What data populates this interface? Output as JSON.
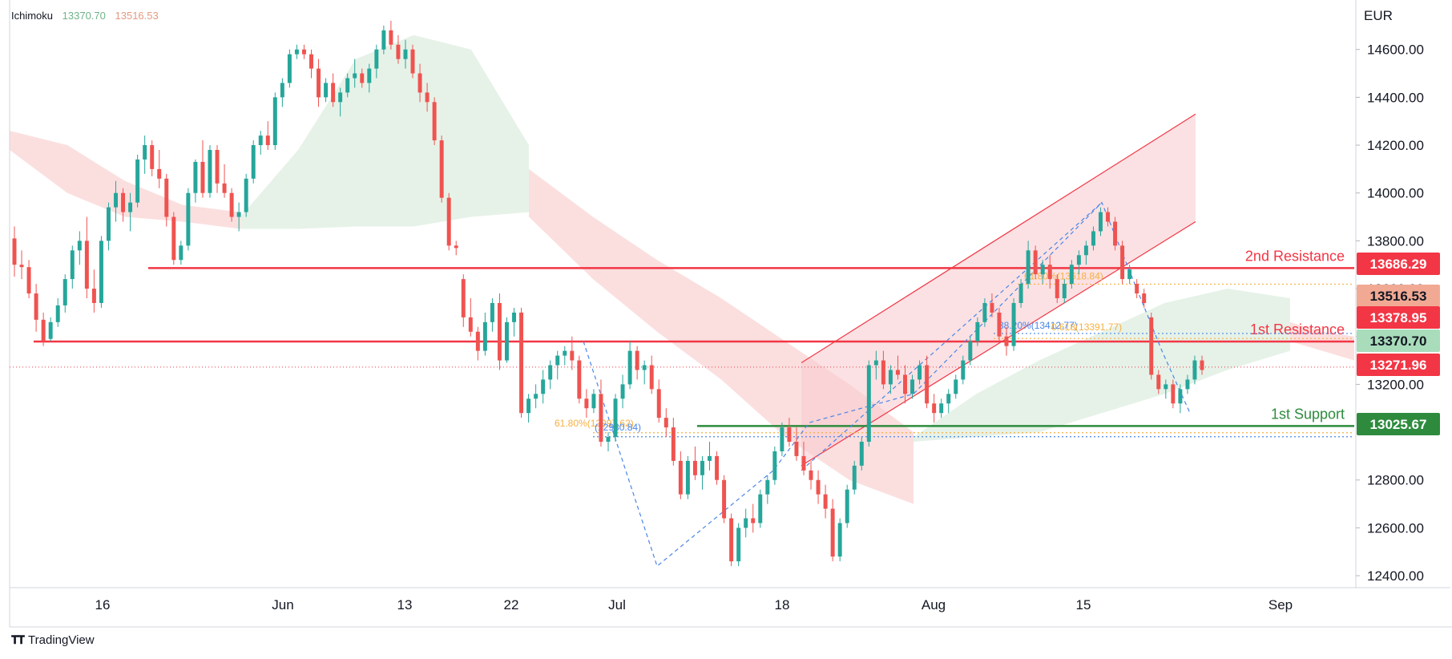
{
  "legend": {
    "name": "Ichimoku",
    "value1": "13370.70",
    "value2": "13516.53"
  },
  "currency": "EUR",
  "brand": "TradingView",
  "colors": {
    "up": "#26a69a",
    "down": "#ef5350",
    "resistance": "#f23645",
    "support": "#2e8b3e",
    "fib": "#f5b041",
    "zigzag": "#4a86e8",
    "cloudBull": "#e3f1e6",
    "cloudBear": "#fbdcdc",
    "channel": "#f23645"
  },
  "chart_data": {
    "type": "candlestick",
    "y_range": [
      12350,
      14780
    ],
    "y_ticks": [
      "14600.00",
      "14400.00",
      "14200.00",
      "14000.00",
      "13800.00",
      "13600.00",
      "13400.00",
      "13200.00",
      "12800.00",
      "12600.00",
      "12400.00"
    ],
    "x_labels": [
      "16",
      "Jun",
      "13",
      "22",
      "Jul",
      "18",
      "Aug",
      "15",
      "Sep"
    ],
    "price_labels": [
      {
        "text": "13686.29",
        "value": 13686.29,
        "color": "#f23645",
        "text_color": "#ffffff"
      },
      {
        "text": "13516.53",
        "value": 13516.53,
        "color": "#f2a994",
        "text_color": "#131722"
      },
      {
        "text": "13378.95",
        "value": 13378.95,
        "color": "#f23645",
        "text_color": "#ffffff"
      },
      {
        "text": "13370.70",
        "value": 13370.7,
        "color": "#a9dcbb",
        "text_color": "#131722"
      },
      {
        "text": "13271.96",
        "value": 13271.96,
        "color": "#f23645",
        "text_color": "#ffffff"
      },
      {
        "text": "13025.67",
        "value": 13025.67,
        "color": "#2e8b3e",
        "text_color": "#ffffff"
      }
    ],
    "levels": [
      {
        "name": "2nd Resistance",
        "value": 13686.29,
        "color": "#f23645"
      },
      {
        "name": "1st Resistance",
        "value": 13378.95,
        "color": "#f23645"
      },
      {
        "name": "1st Support",
        "value": 13025.67,
        "color": "#2e8b3e"
      }
    ],
    "fib_labels": [
      {
        "text": "61.80%(12997.62)",
        "value": 12997.62,
        "color": "#f5b041"
      },
      {
        "text": "(12980.84)",
        "value": 12980.84,
        "color": "#4a86e8"
      },
      {
        "text": "61.80%(13618.84)",
        "value": 13618.84,
        "color": "#f5b041"
      },
      {
        "text": "38.20%(13412.77)",
        "value": 13412.77,
        "color": "#4a86e8"
      },
      {
        "text": "0.618(13391.77)",
        "value": 13391.77,
        "color": "#f5b041"
      }
    ],
    "last_price": 13271.96,
    "candles": [
      [
        13810,
        13860,
        13650,
        13700
      ],
      [
        13700,
        13760,
        13640,
        13690
      ],
      [
        13690,
        13720,
        13560,
        13580
      ],
      [
        13580,
        13620,
        13420,
        13470
      ],
      [
        13470,
        13500,
        13360,
        13380
      ],
      [
        13390,
        13480,
        13380,
        13460
      ],
      [
        13460,
        13560,
        13440,
        13530
      ],
      [
        13530,
        13660,
        13500,
        13640
      ],
      [
        13640,
        13780,
        13600,
        13760
      ],
      [
        13760,
        13840,
        13700,
        13800
      ],
      [
        13800,
        13900,
        13560,
        13600
      ],
      [
        13600,
        13680,
        13500,
        13540
      ],
      [
        13540,
        13820,
        13520,
        13800
      ],
      [
        13800,
        13960,
        13760,
        13940
      ],
      [
        13940,
        14050,
        13880,
        14000
      ],
      [
        14000,
        14020,
        13880,
        13920
      ],
      [
        13920,
        14000,
        13840,
        13960
      ],
      [
        13960,
        14160,
        13940,
        14140
      ],
      [
        14140,
        14240,
        14080,
        14200
      ],
      [
        14200,
        14220,
        14070,
        14100
      ],
      [
        14100,
        14180,
        14020,
        14060
      ],
      [
        14060,
        14080,
        13860,
        13900
      ],
      [
        13900,
        13920,
        13700,
        13720
      ],
      [
        13720,
        13800,
        13700,
        13780
      ],
      [
        13780,
        14020,
        13760,
        14000
      ],
      [
        14000,
        14140,
        13960,
        14130
      ],
      [
        14130,
        14220,
        13980,
        14000
      ],
      [
        14000,
        14200,
        13980,
        14180
      ],
      [
        14180,
        14200,
        14000,
        14040
      ],
      [
        14040,
        14120,
        13980,
        14000
      ],
      [
        14000,
        14020,
        13880,
        13900
      ],
      [
        13900,
        13960,
        13840,
        13920
      ],
      [
        13920,
        14080,
        13900,
        14060
      ],
      [
        14060,
        14220,
        14040,
        14200
      ],
      [
        14200,
        14260,
        14160,
        14240
      ],
      [
        14240,
        14300,
        14180,
        14200
      ],
      [
        14200,
        14420,
        14180,
        14400
      ],
      [
        14400,
        14480,
        14360,
        14460
      ],
      [
        14460,
        14600,
        14440,
        14580
      ],
      [
        14580,
        14620,
        14560,
        14600
      ],
      [
        14600,
        14620,
        14560,
        14580
      ],
      [
        14580,
        14600,
        14480,
        14520
      ],
      [
        14520,
        14560,
        14360,
        14400
      ],
      [
        14400,
        14480,
        14380,
        14460
      ],
      [
        14460,
        14500,
        14360,
        14380
      ],
      [
        14380,
        14440,
        14320,
        14420
      ],
      [
        14420,
        14500,
        14400,
        14480
      ],
      [
        14480,
        14560,
        14440,
        14500
      ],
      [
        14500,
        14520,
        14440,
        14460
      ],
      [
        14460,
        14540,
        14420,
        14520
      ],
      [
        14520,
        14620,
        14480,
        14600
      ],
      [
        14600,
        14700,
        14580,
        14680
      ],
      [
        14680,
        14720,
        14600,
        14620
      ],
      [
        14620,
        14660,
        14540,
        14560
      ],
      [
        14560,
        14640,
        14520,
        14600
      ],
      [
        14600,
        14620,
        14480,
        14500
      ],
      [
        14500,
        14540,
        14380,
        14420
      ],
      [
        14420,
        14460,
        14340,
        14380
      ],
      [
        14380,
        14400,
        14200,
        14220
      ],
      [
        14220,
        14240,
        13960,
        13980
      ],
      [
        13980,
        14000,
        13760,
        13780
      ],
      [
        13780,
        13800,
        13740,
        13770
      ],
      [
        13640,
        13660,
        13440,
        13480
      ],
      [
        13480,
        13560,
        13400,
        13420
      ],
      [
        13420,
        13440,
        13300,
        13340
      ],
      [
        13340,
        13500,
        13320,
        13460
      ],
      [
        13460,
        13560,
        13420,
        13540
      ],
      [
        13540,
        13580,
        13260,
        13300
      ],
      [
        13300,
        13480,
        13290,
        13460
      ],
      [
        13460,
        13520,
        13400,
        13500
      ],
      [
        13500,
        13520,
        13060,
        13080
      ],
      [
        13080,
        13160,
        13040,
        13140
      ],
      [
        13140,
        13200,
        13100,
        13160
      ],
      [
        13160,
        13260,
        13120,
        13220
      ],
      [
        13220,
        13300,
        13180,
        13280
      ],
      [
        13280,
        13340,
        13220,
        13320
      ],
      [
        13320,
        13360,
        13280,
        13340
      ],
      [
        13340,
        13400,
        13260,
        13300
      ],
      [
        13300,
        13320,
        13120,
        13140
      ],
      [
        13140,
        13180,
        13060,
        13100
      ],
      [
        13100,
        13180,
        13080,
        13160
      ],
      [
        13160,
        13220,
        12940,
        12960
      ],
      [
        12960,
        13000,
        12920,
        12980
      ],
      [
        12980,
        13160,
        12960,
        13140
      ],
      [
        13140,
        13240,
        13100,
        13200
      ],
      [
        13200,
        13380,
        13180,
        13340
      ],
      [
        13340,
        13360,
        13220,
        13260
      ],
      [
        13260,
        13300,
        13200,
        13280
      ],
      [
        13280,
        13320,
        13160,
        13180
      ],
      [
        13180,
        13220,
        13040,
        13060
      ],
      [
        13060,
        13100,
        12980,
        13020
      ],
      [
        13020,
        13060,
        12860,
        12880
      ],
      [
        12880,
        12920,
        12720,
        12740
      ],
      [
        12740,
        12900,
        12720,
        12880
      ],
      [
        12880,
        12940,
        12800,
        12820
      ],
      [
        12820,
        12900,
        12760,
        12880
      ],
      [
        12880,
        12960,
        12840,
        12900
      ],
      [
        12900,
        12920,
        12780,
        12800
      ],
      [
        12800,
        12820,
        12620,
        12640
      ],
      [
        12640,
        12660,
        12440,
        12460
      ],
      [
        12460,
        12620,
        12440,
        12600
      ],
      [
        12600,
        12680,
        12560,
        12640
      ],
      [
        12640,
        12700,
        12580,
        12620
      ],
      [
        12620,
        12760,
        12600,
        12740
      ],
      [
        12740,
        12820,
        12700,
        12800
      ],
      [
        12800,
        12940,
        12780,
        12920
      ],
      [
        12920,
        13040,
        12900,
        13020
      ],
      [
        13020,
        13060,
        12940,
        12960
      ],
      [
        12960,
        13020,
        12880,
        12900
      ],
      [
        12900,
        12960,
        12820,
        12840
      ],
      [
        12840,
        12880,
        12760,
        12800
      ],
      [
        12800,
        12840,
        12700,
        12740
      ],
      [
        12740,
        12780,
        12640,
        12680
      ],
      [
        12680,
        12720,
        12460,
        12480
      ],
      [
        12480,
        12640,
        12460,
        12620
      ],
      [
        12620,
        12780,
        12600,
        12760
      ],
      [
        12760,
        12880,
        12740,
        12860
      ],
      [
        12860,
        12980,
        12840,
        12960
      ],
      [
        12960,
        13300,
        12940,
        13280
      ],
      [
        13280,
        13340,
        13220,
        13300
      ],
      [
        13300,
        13340,
        13180,
        13200
      ],
      [
        13200,
        13280,
        13160,
        13260
      ],
      [
        13260,
        13320,
        13220,
        13240
      ],
      [
        13240,
        13280,
        13120,
        13160
      ],
      [
        13160,
        13240,
        13140,
        13220
      ],
      [
        13220,
        13300,
        13200,
        13280
      ],
      [
        13280,
        13320,
        13100,
        13120
      ],
      [
        13120,
        13160,
        13040,
        13080
      ],
      [
        13080,
        13140,
        13060,
        13120
      ],
      [
        13120,
        13180,
        13080,
        13160
      ],
      [
        13160,
        13240,
        13140,
        13220
      ],
      [
        13220,
        13320,
        13200,
        13300
      ],
      [
        13300,
        13400,
        13280,
        13380
      ],
      [
        13380,
        13480,
        13360,
        13460
      ],
      [
        13460,
        13560,
        13440,
        13540
      ],
      [
        13540,
        13580,
        13480,
        13500
      ],
      [
        13500,
        13520,
        13380,
        13400
      ],
      [
        13400,
        13440,
        13320,
        13360
      ],
      [
        13360,
        13560,
        13340,
        13540
      ],
      [
        13540,
        13640,
        13520,
        13620
      ],
      [
        13620,
        13800,
        13600,
        13760
      ],
      [
        13760,
        13780,
        13640,
        13660
      ],
      [
        13660,
        13720,
        13620,
        13700
      ],
      [
        13700,
        13740,
        13600,
        13640
      ],
      [
        13640,
        13660,
        13540,
        13560
      ],
      [
        13560,
        13640,
        13540,
        13620
      ],
      [
        13620,
        13720,
        13600,
        13700
      ],
      [
        13700,
        13760,
        13660,
        13740
      ],
      [
        13740,
        13800,
        13700,
        13780
      ],
      [
        13780,
        13860,
        13760,
        13840
      ],
      [
        13840,
        13940,
        13820,
        13920
      ],
      [
        13920,
        13940,
        13860,
        13880
      ],
      [
        13880,
        13900,
        13760,
        13780
      ],
      [
        13780,
        13800,
        13620,
        13640
      ],
      [
        13640,
        13700,
        13620,
        13680
      ],
      [
        13620,
        13640,
        13560,
        13580
      ],
      [
        13580,
        13600,
        13520,
        13540
      ],
      [
        13480,
        13500,
        13220,
        13240
      ],
      [
        13240,
        13260,
        13160,
        13180
      ],
      [
        13180,
        13220,
        13140,
        13200
      ],
      [
        13200,
        13220,
        13100,
        13120
      ],
      [
        13120,
        13200,
        13080,
        13180
      ],
      [
        13180,
        13240,
        13160,
        13220
      ],
      [
        13220,
        13320,
        13200,
        13300
      ],
      [
        13300,
        13320,
        13240,
        13260
      ]
    ]
  }
}
